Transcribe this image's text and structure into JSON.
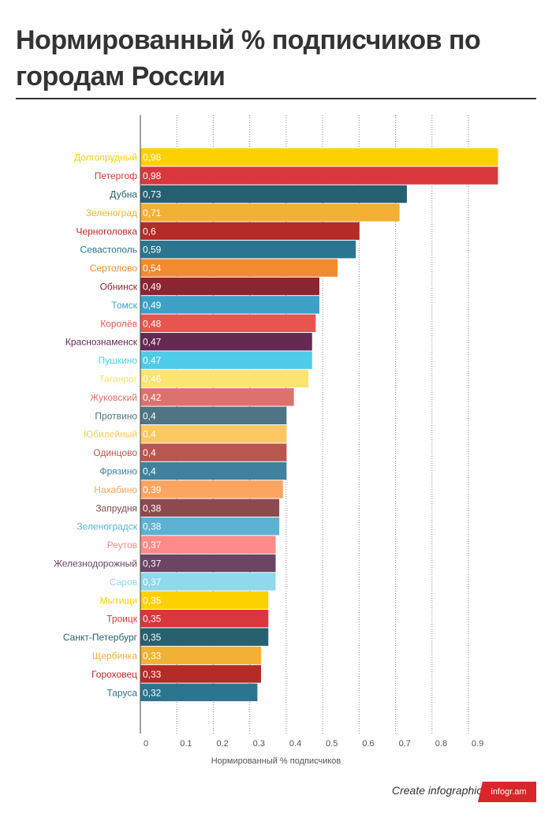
{
  "title": "Нормированный % подписчиков по городам России",
  "footer": {
    "text": "Create infographics",
    "badge": "infogr.am"
  },
  "chart_data": {
    "type": "bar",
    "orientation": "horizontal",
    "title": "Нормированный % подписчиков по городам России",
    "xlabel": "Нормированный % подписчиков",
    "ylabel": "",
    "xlim": [
      0,
      0.98
    ],
    "xticks": [
      "0",
      "0.1",
      "0.2",
      "0.3",
      "0.4",
      "0.5",
      "0.6",
      "0.7",
      "0.8",
      "0.9"
    ],
    "tick_values": [
      0,
      0.1,
      0.2,
      0.3,
      0.4,
      0.5,
      0.6,
      0.7,
      0.8,
      0.9
    ],
    "grid": true,
    "categories": [
      "Долгопрудный",
      "Петергоф",
      "Дубна",
      "Зеленоград",
      "Черноголовка",
      "Севастополь",
      "Сертолово",
      "Обнинск",
      "Томск",
      "Королёв",
      "Краснознаменск",
      "Пушкино",
      "Таганрог",
      "Жуковский",
      "Протвино",
      "Юбилейный",
      "Одинцово",
      "Фрязино",
      "Нахабино",
      "Запрудня",
      "Зеленоградск",
      "Реутов",
      "Железнодорожный",
      "Саров",
      "Мытищи",
      "Троицк",
      "Санкт-Петербург",
      "Щербинка",
      "Гороховец",
      "Таруса"
    ],
    "values": [
      0.98,
      0.98,
      0.73,
      0.71,
      0.6,
      0.59,
      0.54,
      0.49,
      0.49,
      0.48,
      0.47,
      0.47,
      0.46,
      0.42,
      0.4,
      0.4,
      0.4,
      0.4,
      0.39,
      0.38,
      0.38,
      0.37,
      0.37,
      0.37,
      0.35,
      0.35,
      0.35,
      0.33,
      0.33,
      0.32
    ],
    "value_labels": [
      "0,98",
      "0,98",
      "0,73",
      "0,71",
      "0,6",
      "0,59",
      "0,54",
      "0,49",
      "0,49",
      "0,48",
      "0,47",
      "0,47",
      "0,46",
      "0,42",
      "0,4",
      "0,4",
      "0,4",
      "0,4",
      "0,39",
      "0,38",
      "0,38",
      "0,37",
      "0,37",
      "0,37",
      "0,35",
      "0,35",
      "0,35",
      "0,33",
      "0,33",
      "0,32"
    ],
    "colors": [
      "#fdd000",
      "#d9373e",
      "#27606e",
      "#f2b134",
      "#b52b26",
      "#2c7590",
      "#f28b30",
      "#8b2532",
      "#3fa0c6",
      "#e8554e",
      "#632a52",
      "#4ecbe8",
      "#fde372",
      "#dd716e",
      "#4f7483",
      "#fdc861",
      "#b9564f",
      "#40819e",
      "#fca561",
      "#8c4a4f",
      "#5eb1d3",
      "#fe8b89",
      "#6c4464",
      "#8fd8ed",
      "#fdd000",
      "#d9373e",
      "#27606e",
      "#f2b134",
      "#b52b26",
      "#2c7590"
    ]
  }
}
